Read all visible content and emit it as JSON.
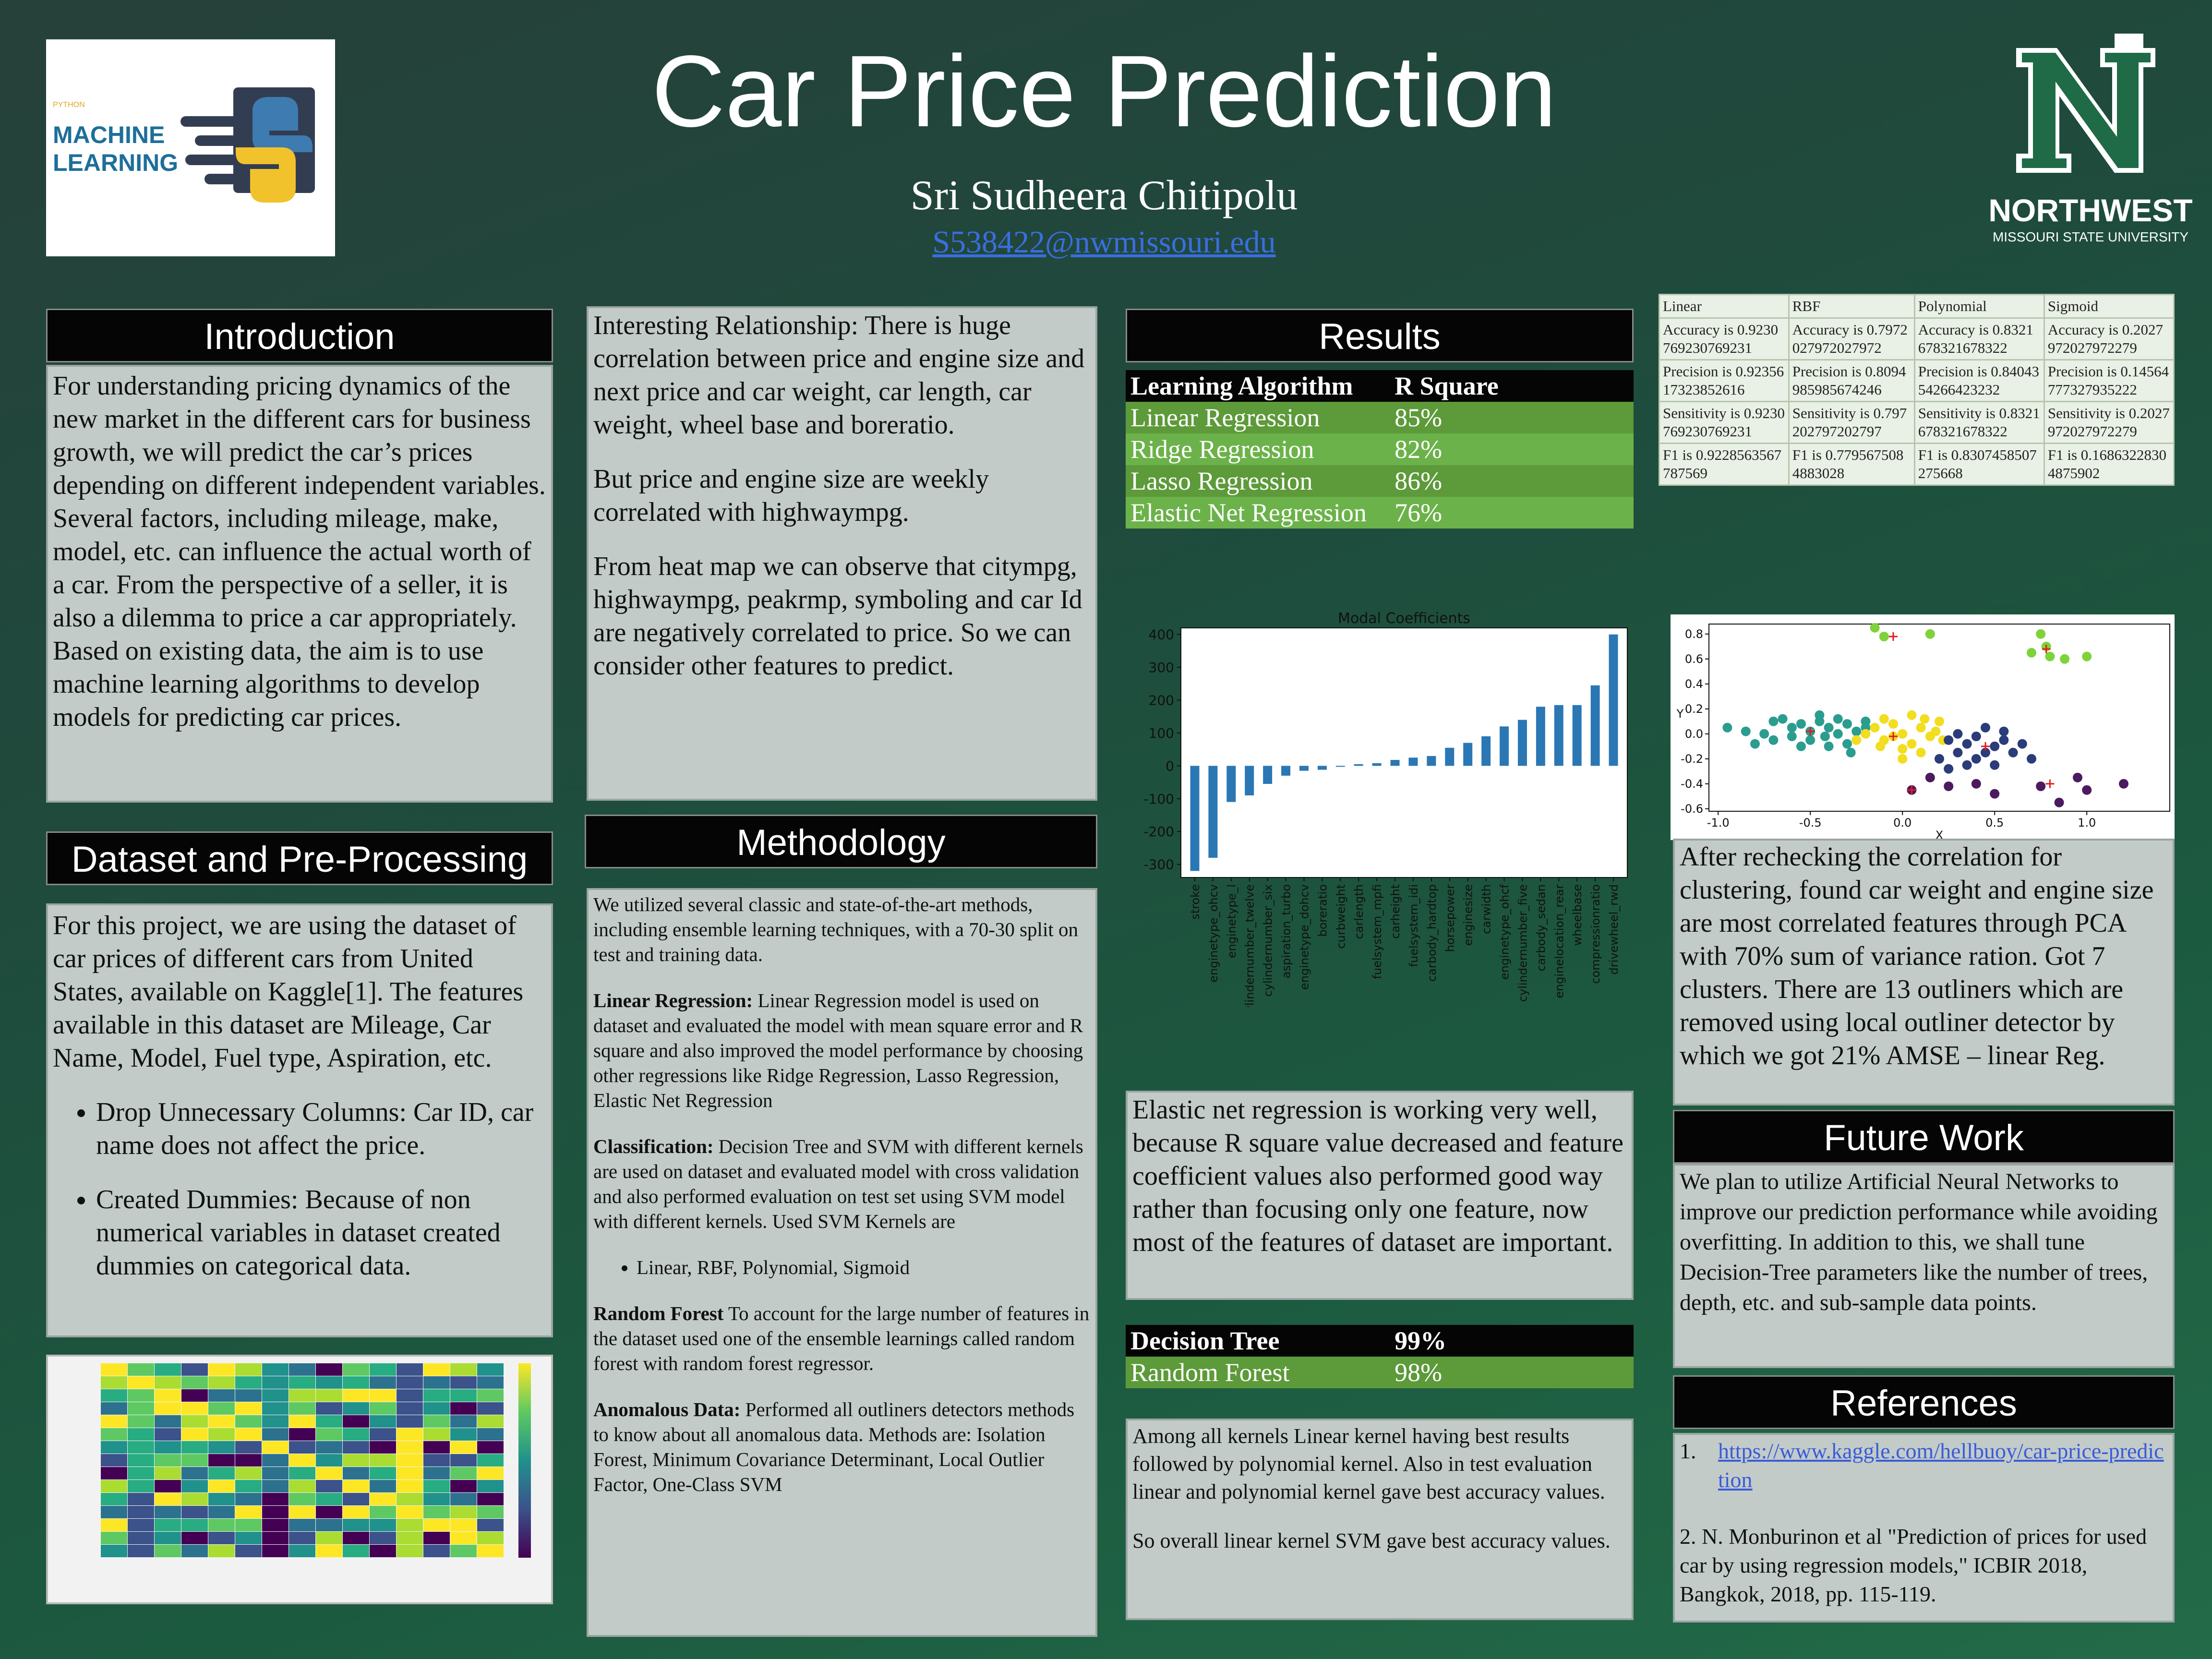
{
  "poster": {
    "title": "Car Price Prediction",
    "author": "Sri Sudheera Chitipolu",
    "email": "S538422@nwmissouri.edu"
  },
  "logo_left": {
    "small": "PYTHON",
    "line1": "MACHINE",
    "line2": "LEARNING"
  },
  "logo_right": {
    "name": "NORTHWEST",
    "sub": "MISSOURI STATE UNIVERSITY"
  },
  "introduction": {
    "header": "Introduction",
    "text": "For understanding pricing dynamics of the new market in the different cars for business growth, we will predict the car’s prices depending on different independent variables. Several factors, including mileage, make, model, etc. can influence the actual worth of a car. From the perspective of a seller, it is also a dilemma to price a car appropriately. Based on existing data, the aim is to use machine learning algorithms to develop models for predicting car prices."
  },
  "dataset": {
    "header": "Dataset and Pre-Processing",
    "text": "For this project, we are using the dataset of car prices of different cars from United States, available on Kaggle[1]. The features available in this dataset are Mileage, Car Name, Model, Fuel type, Aspiration, etc.",
    "bullets": [
      "Drop Unnecessary Columns: Car ID, car name does not affect the price.",
      "Created Dummies: Because of non numerical variables in dataset created dummies on categorical data."
    ]
  },
  "relationship": {
    "p1": "Interesting Relationship: There is huge correlation between price and engine size and next price and car weight, car length, car weight, wheel base and boreratio.",
    "p2": "But price and engine size are weekly correlated with highwaympg.",
    "p3": "From heat map we can observe that citympg, highwaympg, peakrmp, symboling and car Id are negatively correlated to price. So we can consider other features to predict."
  },
  "methodology": {
    "header": "Methodology",
    "intro": "We utilized several classic and state-of-the-art methods, including ensemble learning techniques, with a 70-30 split on test and training data.",
    "lr_label": "Linear Regression:",
    "lr_text": " Linear Regression model is used on dataset and evaluated the model with mean square error and R square and also improved the model performance by choosing other regressions like Ridge Regression, Lasso Regression, Elastic Net Regression",
    "cls_label": "Classification:",
    "cls_text": " Decision Tree and SVM with different kernels are used on dataset and evaluated model with cross validation and also performed evaluation on test set using SVM model with different kernels. Used SVM Kernels are",
    "kernels_bullet": "Linear, RBF, Polynomial, Sigmoid",
    "rf_label": "Random Forest",
    "rf_text": " To account for the large number of features in the dataset used one of the ensemble learnings called random forest with random forest regressor.",
    "an_label": "Anomalous Data:",
    "an_text": " Performed all outliners detectors methods to know about all anomalous data. Methods are: Isolation Forest, Minimum Covariance Determinant, Local Outlier Factor, One-Class SVM"
  },
  "results": {
    "header": "Results",
    "table_head": [
      "Learning Algorithm",
      "R Square"
    ],
    "rows": [
      [
        "Linear Regression",
        "85%"
      ],
      [
        "Ridge Regression",
        "82%"
      ],
      [
        "Lasso Regression",
        "86%"
      ],
      [
        "Elastic Net Regression",
        "76%"
      ]
    ],
    "tree_head": [
      "Decision Tree",
      "99%"
    ],
    "tree_row": [
      "Random Forest",
      "98%"
    ],
    "elastic_note": "Elastic net regression is working very well, because R square value decreased and feature coefficient values also performed good way rather than focusing only one feature, now most of the features of dataset are important.",
    "kernel_note1": "Among all kernels Linear kernel having best results followed by polynomial kernel. Also in test evaluation linear and polynomial kernel gave best accuracy values.",
    "kernel_note2": "So overall linear kernel SVM gave best accuracy values."
  },
  "kernel_table": {
    "headers": [
      "Linear",
      "RBF",
      "Polynomial",
      "Sigmoid"
    ],
    "rows": [
      [
        "Accuracy is 0.9230769230769231",
        "Accuracy is 0.7972027972027972",
        "Accuracy is 0.8321678321678322",
        "Accuracy is 0.2027972027972279"
      ],
      [
        "Precision is 0.9235617323852616",
        "Precision is 0.8094985985674246",
        "Precision is 0.8404354266423232",
        "Precision is 0.14564777327935222"
      ],
      [
        "Sensitivity is 0.9230769230769231",
        "Sensitivity is 0.797202797202797",
        "Sensitivity is 0.8321678321678322",
        "Sensitivity is 0.2027972027972279"
      ],
      [
        "F1 is 0.9228563567787569",
        "F1 is 0.7795675084883028",
        "F1 is 0.8307458507275668",
        "F1 is 0.16863228304875902"
      ]
    ]
  },
  "clustering": {
    "text": "After rechecking the correlation for clustering, found car weight and engine size are most correlated features through PCA with 70% sum of variance ration. Got 7 clusters. There are 13 outliners which are removed using local outliner detector by which we got 21% AMSE – linear Reg."
  },
  "future": {
    "header": "Future Work",
    "text": "We plan to utilize Artificial Neural Networks to improve our prediction performance while avoiding overfitting. In addition to this, we shall tune Decision-Tree parameters like the number of trees, depth, etc. and sub-sample data points."
  },
  "references": {
    "header": "References",
    "ref1_num": "1.",
    "ref1_link": "https://www.kaggle.com/hellbuoy/car-price-prediction",
    "ref2": "2. N. Monburinon et al \"Prediction of prices for used car by using regression models,\" ICBIR 2018, Bangkok, 2018, pp. 115-119."
  },
  "chart_data": [
    {
      "type": "bar",
      "title": "Modal Coefficients",
      "categories": [
        "stroke",
        "enginetype_ohcv",
        "enginetype_l",
        "cylindernumber_twelve",
        "cylindernumber_six",
        "aspiration_turbo",
        "enginetype_dohcv",
        "boreratio",
        "curbweight",
        "carlength",
        "fuelsystem_mpfi",
        "carheight",
        "fuelsystem_idi",
        "carbody_hardtop",
        "horsepower",
        "enginesize",
        "carwidth",
        "enginetype_ohcf",
        "cylindernumber_five",
        "carbody_sedan",
        "enginelocation_rear",
        "wheelbase",
        "compressionratio",
        "drivewheel_rwd"
      ],
      "values": [
        -320,
        -280,
        -110,
        -90,
        -55,
        -30,
        -15,
        -12,
        -3,
        5,
        8,
        18,
        25,
        30,
        55,
        70,
        90,
        120,
        140,
        180,
        185,
        185,
        245,
        400
      ],
      "ylim": [
        -340,
        420
      ],
      "yticks": [
        -300,
        -200,
        -100,
        0,
        100,
        200,
        300,
        400
      ],
      "color": "#2a77b4"
    },
    {
      "type": "scatter",
      "xlabel": "X",
      "ylabel": "Y",
      "xlim": [
        -1.05,
        1.45
      ],
      "ylim": [
        -0.62,
        0.88
      ],
      "xticks": [
        -1.0,
        -0.5,
        0.0,
        0.5,
        1.0
      ],
      "yticks": [
        -0.6,
        -0.4,
        -0.2,
        0.0,
        0.2,
        0.4,
        0.6,
        0.8
      ],
      "series": [
        {
          "color": "#2a9d8f",
          "points": [
            [
              -0.95,
              0.05
            ],
            [
              -0.85,
              0.02
            ],
            [
              -0.7,
              0.1
            ],
            [
              -0.6,
              0.05
            ],
            [
              -0.55,
              0.08
            ],
            [
              -0.5,
              0.02
            ],
            [
              -0.45,
              0.1
            ],
            [
              -0.4,
              0.05
            ],
            [
              -0.35,
              0.0
            ],
            [
              -0.3,
              0.08
            ],
            [
              -0.25,
              0.02
            ],
            [
              -0.5,
              -0.05
            ],
            [
              -0.4,
              -0.1
            ],
            [
              -0.3,
              -0.08
            ],
            [
              -0.6,
              -0.02
            ],
            [
              -0.7,
              -0.05
            ],
            [
              -0.45,
              0.15
            ],
            [
              -0.35,
              0.12
            ],
            [
              -0.2,
              0.05
            ],
            [
              -0.55,
              -0.1
            ],
            [
              -0.75,
              0.0
            ],
            [
              -0.65,
              0.12
            ],
            [
              -0.42,
              -0.02
            ],
            [
              -0.28,
              -0.15
            ],
            [
              -0.2,
              0.1
            ],
            [
              -0.8,
              -0.08
            ]
          ]
        },
        {
          "color": "#f2dd1f",
          "points": [
            [
              -0.2,
              0.0
            ],
            [
              -0.15,
              0.05
            ],
            [
              -0.1,
              -0.05
            ],
            [
              -0.05,
              0.08
            ],
            [
              0.0,
              0.0
            ],
            [
              0.05,
              -0.08
            ],
            [
              0.1,
              0.05
            ],
            [
              0.15,
              -0.02
            ],
            [
              0.2,
              0.1
            ],
            [
              -0.1,
              0.12
            ],
            [
              0.0,
              -0.12
            ],
            [
              0.05,
              0.15
            ],
            [
              -0.12,
              -0.1
            ],
            [
              0.1,
              -0.15
            ],
            [
              0.22,
              -0.05
            ],
            [
              -0.25,
              -0.05
            ],
            [
              0.0,
              -0.2
            ],
            [
              0.12,
              0.12
            ],
            [
              -0.05,
              -0.02
            ],
            [
              0.18,
              0.02
            ]
          ]
        },
        {
          "color": "#2b3c7a",
          "points": [
            [
              0.25,
              -0.05
            ],
            [
              0.3,
              0.0
            ],
            [
              0.35,
              -0.08
            ],
            [
              0.4,
              -0.02
            ],
            [
              0.45,
              0.05
            ],
            [
              0.5,
              -0.1
            ],
            [
              0.55,
              -0.05
            ],
            [
              0.6,
              -0.15
            ],
            [
              0.3,
              -0.15
            ],
            [
              0.4,
              -0.2
            ],
            [
              0.5,
              -0.25
            ],
            [
              0.2,
              -0.2
            ],
            [
              0.45,
              -0.15
            ],
            [
              0.65,
              -0.08
            ],
            [
              0.55,
              0.02
            ],
            [
              0.35,
              -0.25
            ],
            [
              0.7,
              -0.2
            ],
            [
              0.25,
              -0.28
            ]
          ]
        },
        {
          "color": "#4c1a5e",
          "points": [
            [
              0.15,
              -0.35
            ],
            [
              0.25,
              -0.42
            ],
            [
              0.4,
              -0.4
            ],
            [
              0.5,
              -0.48
            ],
            [
              0.05,
              -0.45
            ],
            [
              0.75,
              -0.42
            ],
            [
              0.85,
              -0.55
            ],
            [
              1.0,
              -0.45
            ],
            [
              1.2,
              -0.4
            ],
            [
              0.95,
              -0.35
            ]
          ]
        },
        {
          "color": "#7ed23a",
          "points": [
            [
              -0.15,
              0.85
            ],
            [
              -0.1,
              0.78
            ],
            [
              0.15,
              0.8
            ],
            [
              0.75,
              0.8
            ],
            [
              0.7,
              0.65
            ],
            [
              0.8,
              0.62
            ],
            [
              0.88,
              0.6
            ],
            [
              1.0,
              0.62
            ],
            [
              0.78,
              0.7
            ]
          ]
        }
      ],
      "centers": [
        [
          -0.5,
          0.02
        ],
        [
          -0.05,
          -0.02
        ],
        [
          0.45,
          -0.1
        ],
        [
          0.8,
          -0.4
        ],
        [
          0.78,
          0.68
        ],
        [
          -0.05,
          0.78
        ],
        [
          0.05,
          -0.45
        ]
      ]
    }
  ]
}
